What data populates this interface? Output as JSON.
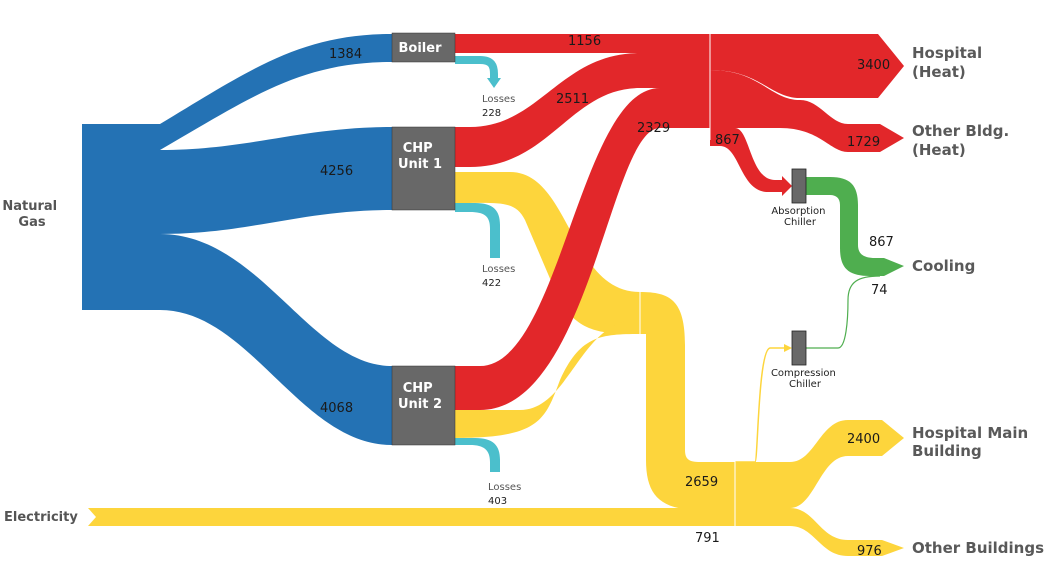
{
  "colors": {
    "gas": "#2472b4",
    "heat": "#e2272a",
    "electric": "#fdd53c",
    "loss": "#4bbfcc",
    "cooling": "#4fae4f",
    "node": "#686868"
  },
  "sources": {
    "natural_gas": [
      "Natural",
      "Gas"
    ],
    "electricity": "Electricity"
  },
  "nodes": {
    "boiler": [
      "Boiler"
    ],
    "chp1": [
      "CHP",
      "Unit 1"
    ],
    "chp2": [
      "CHP",
      "Unit 2"
    ],
    "absorption": [
      "Absorption",
      "Chiller"
    ],
    "compression": [
      "Compression",
      "Chiller"
    ]
  },
  "outputs": {
    "hospital_heat": [
      "Hospital",
      "(Heat)"
    ],
    "other_heat": [
      "Other Bldg.",
      "(Heat)"
    ],
    "cooling": [
      "Cooling"
    ],
    "hospital_main": [
      "Hospital Main",
      "Building"
    ],
    "other_buildings": [
      "Other Buildings"
    ]
  },
  "losses": {
    "label": "Losses",
    "boiler": "228",
    "chp1": "422",
    "chp2": "403"
  },
  "flows": {
    "gas_boiler": "1384",
    "gas_chp1": "4256",
    "gas_chp2": "4068",
    "boiler_heat": "1156",
    "chp1_heat": "2511",
    "chp2_heat": "2329",
    "heat_to_absorption": "867",
    "hospital_heat": "3400",
    "other_heat": "1729",
    "absorption_cooling": "867",
    "compression_cooling": "74",
    "electric_total": "2659",
    "hospital_main": "2400",
    "electricity_in": "791",
    "other_buildings": "976"
  }
}
